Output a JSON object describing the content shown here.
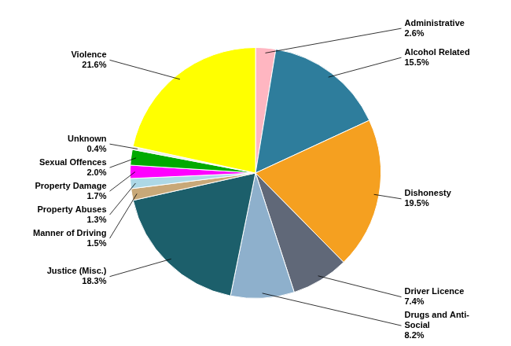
{
  "chart_data": {
    "type": "pie",
    "categories": [
      "Administrative",
      "Alcohol Related",
      "Dishonesty",
      "Driver Licence",
      "Drugs and Anti-\nSocial",
      "Justice (Misc.)",
      "Manner of Driving",
      "Property Abuses",
      "Property Damage",
      "Sexual Offences",
      "Unknown",
      "Violence"
    ],
    "values": [
      2.6,
      15.5,
      19.5,
      7.4,
      8.2,
      18.3,
      1.5,
      1.3,
      1.7,
      2.0,
      0.4,
      21.6
    ],
    "value_labels": [
      "2.6%",
      "15.5%",
      "19.5%",
      "7.4%",
      "8.2%",
      "18.3%",
      "1.5%",
      "1.3%",
      "1.7%",
      "2.0%",
      "0.4%",
      "21.6%"
    ],
    "colors": [
      "#FFB6C1",
      "#2E7D9C",
      "#F5A020",
      "#606878",
      "#8EB0CC",
      "#1C5F6B",
      "#C8A878",
      "#ADD8E6",
      "#FF00FF",
      "#00AA00",
      "#EEEEEE",
      "#FFFF00"
    ],
    "data_labels": true
  }
}
